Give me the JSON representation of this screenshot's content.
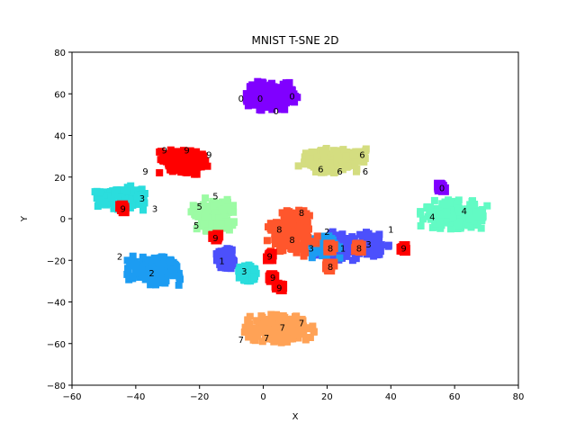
{
  "chart_data": {
    "type": "scatter",
    "title": "MNIST T-SNE 2D",
    "xlabel": "X",
    "ylabel": "Y",
    "xlim": [
      -60,
      80
    ],
    "ylim": [
      -80,
      80
    ],
    "xticks": [
      -60,
      -40,
      -20,
      0,
      20,
      40,
      60,
      80
    ],
    "yticks": [
      -80,
      -60,
      -40,
      -20,
      0,
      20,
      40,
      60,
      80
    ],
    "grid": false,
    "legend": "none",
    "colors": {
      "0": "#8000ff",
      "1": "#4c50fc",
      "2": "#1c9cf2",
      "3": "#2adddd",
      "4": "#62fbc4",
      "5": "#9cfba4",
      "6": "#d4dd80",
      "7": "#ffa256",
      "8": "#ff562c",
      "9": "#ff0000"
    },
    "clusters": [
      {
        "label": "0",
        "center": [
          3,
          59
        ],
        "spread": [
          9,
          7
        ],
        "density": 1.0
      },
      {
        "label": "6",
        "center": [
          22,
          28
        ],
        "spread": [
          11,
          6
        ],
        "density": 1.0
      },
      {
        "label": "9",
        "center": [
          -25,
          27
        ],
        "spread": [
          8,
          6
        ],
        "density": 1.0
      },
      {
        "label": "3",
        "center": [
          -45,
          10
        ],
        "spread": [
          8,
          6
        ],
        "density": 1.0
      },
      {
        "label": "5",
        "center": [
          -16,
          2
        ],
        "spread": [
          7,
          8
        ],
        "density": 0.8
      },
      {
        "label": "4",
        "center": [
          60,
          2
        ],
        "spread": [
          11,
          7
        ],
        "density": 1.0
      },
      {
        "label": "2",
        "center": [
          -34,
          -25
        ],
        "spread": [
          9,
          7
        ],
        "density": 1.0
      },
      {
        "label": "1",
        "center": [
          27,
          -13
        ],
        "spread": [
          13,
          7
        ],
        "density": 0.7
      },
      {
        "label": "2",
        "center": [
          19,
          -13
        ],
        "spread": [
          5,
          6
        ],
        "density": 0.6
      },
      {
        "label": "8",
        "center": [
          9,
          -6
        ],
        "spread": [
          8,
          12
        ],
        "density": 1.0
      },
      {
        "label": "1",
        "center": [
          -12,
          -19
        ],
        "spread": [
          3,
          5
        ],
        "density": 0.6
      },
      {
        "label": "3",
        "center": [
          -5,
          -26
        ],
        "spread": [
          3,
          4
        ],
        "density": 0.6
      },
      {
        "label": "7",
        "center": [
          5,
          -53
        ],
        "spread": [
          11,
          7
        ],
        "density": 1.0
      }
    ],
    "singletons": [
      {
        "label": "9",
        "x": -44,
        "y": 5
      },
      {
        "label": "9",
        "x": -15,
        "y": -9
      },
      {
        "label": "9",
        "x": 2,
        "y": -18
      },
      {
        "label": "9",
        "x": 3,
        "y": -28
      },
      {
        "label": "9",
        "x": 5,
        "y": -33
      },
      {
        "label": "9",
        "x": 44,
        "y": -14
      },
      {
        "label": "8",
        "x": 21,
        "y": -14
      },
      {
        "label": "8",
        "x": 21,
        "y": -23
      },
      {
        "label": "8",
        "x": 30,
        "y": -14
      },
      {
        "label": "0",
        "x": 56,
        "y": 15
      }
    ],
    "annotations": [
      {
        "text": "0",
        "x": -7,
        "y": 58
      },
      {
        "text": "0",
        "x": -1,
        "y": 58
      },
      {
        "text": "0",
        "x": 4,
        "y": 52
      },
      {
        "text": "0",
        "x": 9,
        "y": 59
      },
      {
        "text": "9",
        "x": -31,
        "y": 33
      },
      {
        "text": "9",
        "x": -24,
        "y": 33
      },
      {
        "text": "9",
        "x": -17,
        "y": 31
      },
      {
        "text": "9",
        "x": -37,
        "y": 23
      },
      {
        "text": "6",
        "x": 18,
        "y": 24
      },
      {
        "text": "6",
        "x": 24,
        "y": 23
      },
      {
        "text": "6",
        "x": 31,
        "y": 31
      },
      {
        "text": "6",
        "x": 32,
        "y": 23
      },
      {
        "text": "3",
        "x": -38,
        "y": 10
      },
      {
        "text": "3",
        "x": -34,
        "y": 5
      },
      {
        "text": "5",
        "x": -20,
        "y": 6
      },
      {
        "text": "5",
        "x": -15,
        "y": 11
      },
      {
        "text": "5",
        "x": -21,
        "y": -3
      },
      {
        "text": "4",
        "x": 53,
        "y": 1
      },
      {
        "text": "4",
        "x": 63,
        "y": 4
      },
      {
        "text": "2",
        "x": -45,
        "y": -18
      },
      {
        "text": "2",
        "x": -35,
        "y": -26
      },
      {
        "text": "2",
        "x": 20,
        "y": -6
      },
      {
        "text": "1",
        "x": -13,
        "y": -20
      },
      {
        "text": "1",
        "x": 40,
        "y": -5
      },
      {
        "text": "1",
        "x": 25,
        "y": -14
      },
      {
        "text": "3",
        "x": -6,
        "y": -25
      },
      {
        "text": "3",
        "x": 33,
        "y": -12
      },
      {
        "text": "8",
        "x": 5,
        "y": -5
      },
      {
        "text": "8",
        "x": 9,
        "y": -10
      },
      {
        "text": "8",
        "x": 12,
        "y": 3
      },
      {
        "text": "3",
        "x": 15,
        "y": -14
      },
      {
        "text": "7",
        "x": -7,
        "y": -58
      },
      {
        "text": "7",
        "x": 1,
        "y": -57
      },
      {
        "text": "7",
        "x": 6,
        "y": -52
      },
      {
        "text": "7",
        "x": 12,
        "y": -50
      }
    ]
  }
}
